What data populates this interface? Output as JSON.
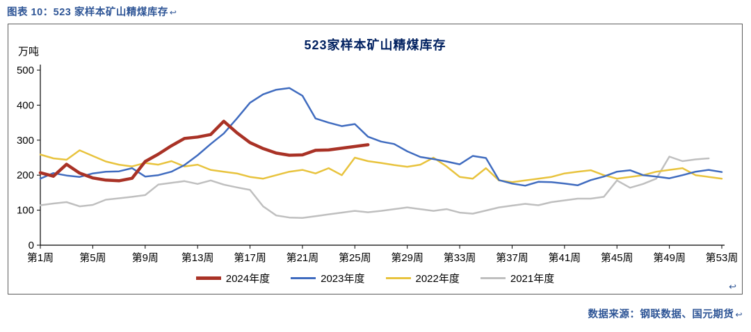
{
  "page": {
    "header": "图表 10：523 家样本矿山精煤库存",
    "header_arrow": "↩",
    "box_arrow": "↩",
    "source": "数据来源：钢联数据、国元期货",
    "source_arrow": "↩"
  },
  "colors": {
    "header_text": "#2E5596",
    "title_text": "#002060",
    "axis_text": "#000000",
    "border": "#5A5A5A"
  },
  "chart_data": {
    "type": "line",
    "title": "523家样本矿山精煤库存",
    "ylabel": "万吨",
    "ylim": [
      0,
      500
    ],
    "yticks": [
      0,
      100,
      200,
      300,
      400,
      500
    ],
    "x_weeks_total": 53,
    "x_tick_labels": [
      "第1周",
      "第5周",
      "第9周",
      "第13周",
      "第17周",
      "第21周",
      "第25周",
      "第29周",
      "第33周",
      "第37周",
      "第41周",
      "第45周",
      "第49周",
      "第53周"
    ],
    "grid": false,
    "legend_position": "bottom",
    "series": [
      {
        "name": "2024年度",
        "color": "#A93226",
        "width": 4.5,
        "values": [
          207,
          197,
          231,
          206,
          192,
          186,
          184,
          191,
          239,
          260,
          284,
          305,
          309,
          316,
          354,
          321,
          293,
          276,
          263,
          257,
          258,
          271,
          272,
          277,
          282,
          287
        ]
      },
      {
        "name": "2023年度",
        "color": "#3F6BBF",
        "width": 2.5,
        "values": [
          190,
          206,
          199,
          195,
          205,
          210,
          211,
          220,
          196,
          200,
          210,
          229,
          257,
          289,
          319,
          362,
          407,
          431,
          444,
          449,
          427,
          362,
          350,
          340,
          346,
          310,
          296,
          289,
          268,
          252,
          246,
          239,
          231,
          255,
          249,
          186,
          176,
          170,
          181,
          180,
          176,
          171,
          186,
          196,
          210,
          214,
          200,
          196,
          191,
          200,
          210,
          215,
          209
        ]
      },
      {
        "name": "2022年度",
        "color": "#E8C33D",
        "width": 2.5,
        "values": [
          259,
          248,
          244,
          271,
          255,
          239,
          230,
          225,
          235,
          230,
          240,
          225,
          230,
          215,
          210,
          205,
          195,
          190,
          200,
          210,
          215,
          205,
          220,
          200,
          250,
          240,
          235,
          229,
          224,
          230,
          250,
          225,
          195,
          190,
          220,
          185,
          180,
          185,
          190,
          195,
          205,
          210,
          214,
          200,
          190,
          195,
          200,
          210,
          215,
          220,
          200,
          195,
          190
        ]
      },
      {
        "name": "2021年度",
        "color": "#BFBFBF",
        "width": 2.5,
        "values": [
          114,
          119,
          123,
          111,
          115,
          130,
          134,
          138,
          143,
          173,
          178,
          183,
          175,
          185,
          173,
          165,
          158,
          111,
          85,
          79,
          78,
          83,
          88,
          93,
          98,
          94,
          98,
          103,
          108,
          103,
          98,
          103,
          93,
          90,
          99,
          108,
          113,
          118,
          114,
          123,
          128,
          133,
          133,
          138,
          185,
          164,
          175,
          190,
          253,
          240,
          245,
          248
        ]
      }
    ]
  }
}
